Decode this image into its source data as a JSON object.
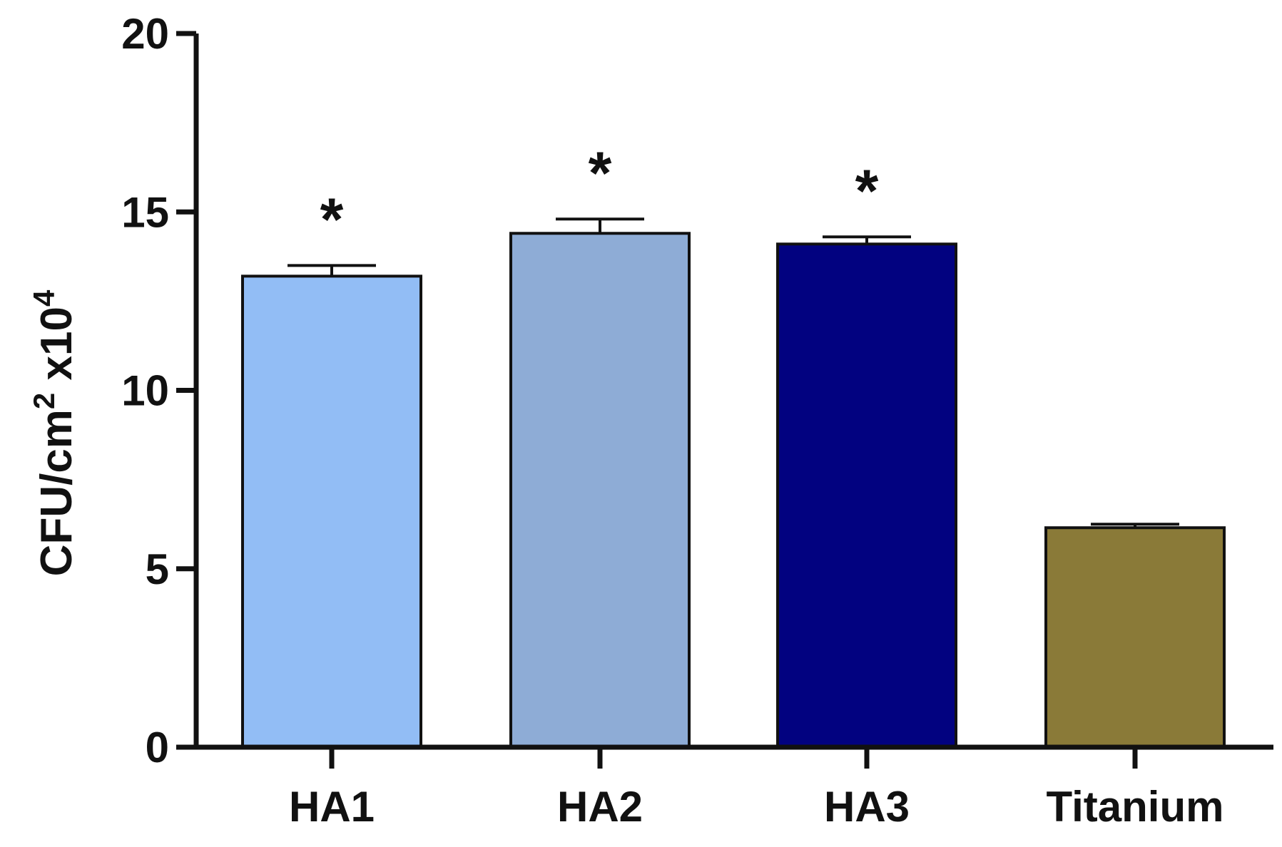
{
  "chart_data": {
    "type": "bar",
    "title": "",
    "xlabel": "",
    "ylabel": {
      "base": "CFU/cm",
      "sup1": "2",
      "mid": " x10",
      "sup2": "4"
    },
    "categories": [
      "HA1",
      "HA2",
      "HA3",
      "Titanium"
    ],
    "values": [
      13.2,
      14.4,
      14.1,
      6.15
    ],
    "errors": [
      0.3,
      0.4,
      0.2,
      0.1
    ],
    "significance": [
      "*",
      "*",
      "*",
      ""
    ],
    "colors": [
      "#92bdf5",
      "#8eacd6",
      "#020280",
      "#8a7a38"
    ],
    "ylim": [
      0,
      20
    ],
    "yticks": [
      "0",
      "5",
      "10",
      "15",
      "20"
    ],
    "grid": false,
    "legend": "none"
  }
}
